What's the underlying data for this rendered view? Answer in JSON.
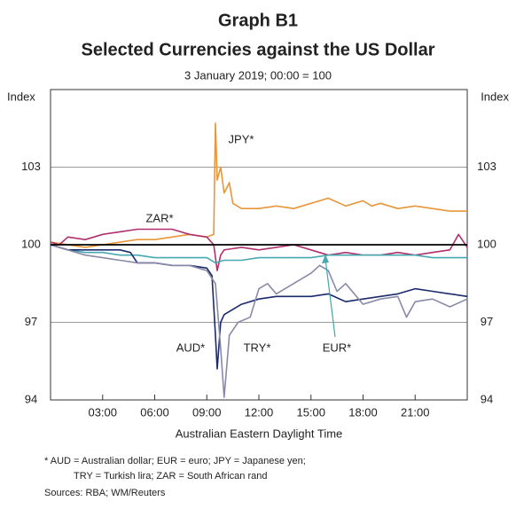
{
  "chart_data": {
    "type": "line",
    "title": "Graph B1",
    "subtitle": "Selected Currencies against the US Dollar",
    "note": "3 January 2019; 00:00 = 100",
    "y_label": "Index",
    "y2_label": "Index",
    "x_label": "Australian Eastern Daylight Time",
    "xlim": [
      0,
      24
    ],
    "xticks": [
      {
        "value": 3,
        "label": "03:00"
      },
      {
        "value": 6,
        "label": "06:00"
      },
      {
        "value": 9,
        "label": "09:00"
      },
      {
        "value": 12,
        "label": "12:00"
      },
      {
        "value": 15,
        "label": "15:00"
      },
      {
        "value": 18,
        "label": "18:00"
      },
      {
        "value": 21,
        "label": "21:00"
      }
    ],
    "ylim": [
      94,
      106
    ],
    "yticks": [
      94,
      97,
      100,
      103
    ],
    "y2lim": [
      94,
      106
    ],
    "y2ticks": [
      94,
      97,
      100,
      103
    ],
    "grid": true,
    "reference_line": 100,
    "series": [
      {
        "name": "JPY*",
        "color": "#e8963a",
        "x": [
          0,
          1,
          2,
          3,
          4,
          5,
          6,
          7,
          8,
          9,
          9.4,
          9.5,
          9.6,
          9.8,
          10,
          10.3,
          10.5,
          11,
          12,
          13,
          14,
          15,
          16,
          17,
          18,
          18.5,
          19,
          20,
          21,
          22,
          23,
          24
        ],
        "values": [
          100.1,
          100.0,
          99.9,
          100.0,
          100.1,
          100.2,
          100.2,
          100.3,
          100.4,
          100.3,
          100.4,
          104.7,
          102.5,
          103.0,
          102.0,
          102.4,
          101.6,
          101.4,
          101.4,
          101.5,
          101.4,
          101.6,
          101.8,
          101.5,
          101.7,
          101.5,
          101.6,
          101.4,
          101.5,
          101.4,
          101.3,
          101.3
        ]
      },
      {
        "name": "ZAR*",
        "color": "#b0306e",
        "x": [
          0,
          0.5,
          1,
          2,
          3,
          4,
          5,
          6,
          7,
          8,
          9,
          9.4,
          9.6,
          9.8,
          10,
          11,
          12,
          13,
          14,
          15,
          16,
          17,
          18,
          19,
          20,
          21,
          22,
          23,
          23.5,
          24
        ],
        "values": [
          100.1,
          100.0,
          100.3,
          100.2,
          100.4,
          100.5,
          100.6,
          100.6,
          100.6,
          100.4,
          100.3,
          100.0,
          99.0,
          99.6,
          99.8,
          99.9,
          99.8,
          99.9,
          100.0,
          99.8,
          99.6,
          99.7,
          99.6,
          99.6,
          99.7,
          99.6,
          99.7,
          99.8,
          100.4,
          99.9
        ]
      },
      {
        "name": "EUR*",
        "color": "#46a8b0",
        "x": [
          0,
          1,
          2,
          3,
          4,
          5,
          6,
          7,
          8,
          9,
          9.5,
          10,
          11,
          12,
          13,
          14,
          15,
          16,
          17,
          18,
          19,
          20,
          21,
          22,
          23,
          24
        ],
        "values": [
          100.0,
          99.8,
          99.7,
          99.7,
          99.6,
          99.6,
          99.5,
          99.5,
          99.5,
          99.5,
          99.3,
          99.4,
          99.4,
          99.5,
          99.5,
          99.5,
          99.5,
          99.6,
          99.6,
          99.6,
          99.6,
          99.6,
          99.6,
          99.5,
          99.5,
          99.5
        ]
      },
      {
        "name": "AUD*",
        "color": "#1a2a6c",
        "x": [
          0,
          1,
          2,
          3,
          4,
          4.6,
          5,
          6,
          7,
          8,
          9,
          9.3,
          9.5,
          9.6,
          9.8,
          10,
          10.5,
          11,
          12,
          13,
          14,
          15,
          16,
          17,
          18,
          19,
          20,
          21,
          22,
          23,
          24
        ],
        "values": [
          100.0,
          99.8,
          99.8,
          99.8,
          99.8,
          99.7,
          99.3,
          99.3,
          99.2,
          99.2,
          99.1,
          98.8,
          96.5,
          95.2,
          97.0,
          97.3,
          97.5,
          97.7,
          97.9,
          98.0,
          98.0,
          98.0,
          98.1,
          97.8,
          97.9,
          98.0,
          98.1,
          98.3,
          98.2,
          98.1,
          98.0
        ]
      },
      {
        "name": "TRY*",
        "color": "#8a8aa8",
        "x": [
          0,
          1,
          2,
          3,
          4,
          5,
          6,
          7,
          8,
          9,
          9.5,
          9.8,
          10,
          10.3,
          10.8,
          11.5,
          12,
          12.5,
          13,
          14,
          15,
          15.5,
          16,
          16.5,
          17,
          18,
          19,
          20,
          20.5,
          21,
          22,
          23,
          24
        ],
        "values": [
          100.0,
          99.8,
          99.6,
          99.5,
          99.4,
          99.3,
          99.3,
          99.2,
          99.2,
          99.0,
          98.5,
          96.0,
          94.1,
          96.5,
          97.0,
          97.2,
          98.3,
          98.5,
          98.1,
          98.5,
          98.9,
          99.2,
          99.0,
          98.2,
          98.5,
          97.7,
          97.9,
          98.0,
          97.2,
          97.8,
          97.9,
          97.6,
          97.9
        ]
      }
    ],
    "footnotes": [
      "*    AUD = Australian dollar; EUR = euro; JPY  = Japanese yen;",
      "TRY = Turkish lira; ZAR = South African rand"
    ],
    "sources": "Sources: RBA; WM/Reuters"
  }
}
